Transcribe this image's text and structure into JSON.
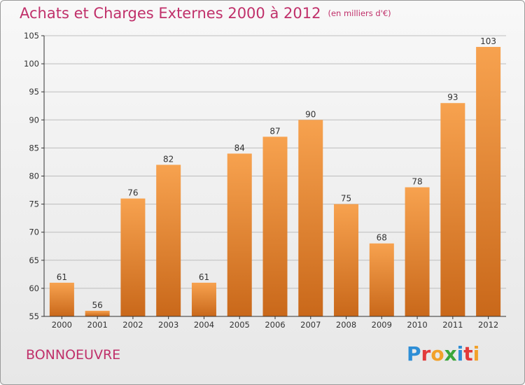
{
  "header": {
    "title": "Achats et Charges Externes 2000 à 2012",
    "subtitle": "(en milliers d'€)"
  },
  "footer": {
    "place": "BONNOEUVRE",
    "brand_letters": [
      "P",
      "r",
      "o",
      "x",
      "i",
      "t",
      "i"
    ],
    "brand_colors": [
      "#2e8ed6",
      "#e23a3a",
      "#f2a12a",
      "#3aa63a",
      "#2e8ed6",
      "#e23a3a",
      "#f2a12a"
    ]
  },
  "colors": {
    "bar_top": "#f7a24f",
    "bar_bottom": "#c9681a",
    "axis": "#333333",
    "grid": "#bdbdbd"
  },
  "chart_data": {
    "type": "bar",
    "categories": [
      "2000",
      "2001",
      "2002",
      "2003",
      "2004",
      "2005",
      "2006",
      "2007",
      "2008",
      "2009",
      "2010",
      "2011",
      "2012"
    ],
    "values": [
      61,
      56,
      76,
      82,
      61,
      84,
      87,
      90,
      75,
      68,
      78,
      93,
      103
    ],
    "ylim": [
      55,
      105
    ],
    "yticks": [
      55,
      60,
      65,
      70,
      75,
      80,
      85,
      90,
      95,
      100,
      105
    ],
    "grid": true
  }
}
